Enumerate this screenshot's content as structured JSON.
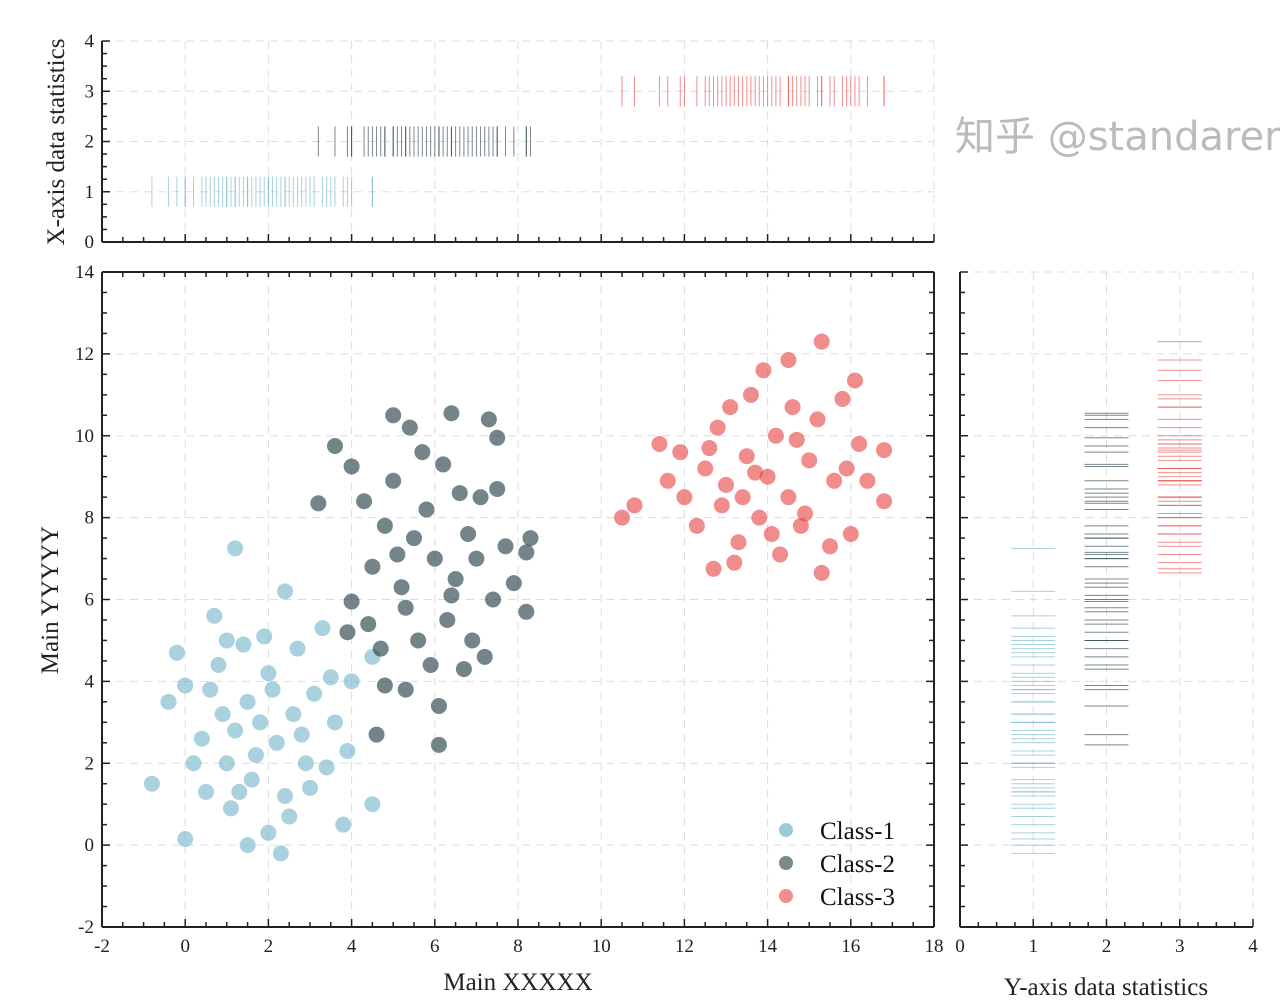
{
  "chart_data": [
    {
      "type": "scatter",
      "xlabel": "Main XXXXX",
      "ylabel": "Main YYYYY",
      "xlim": [
        -2,
        18
      ],
      "ylim": [
        -2,
        14
      ],
      "xticks": [
        -2,
        0,
        2,
        4,
        6,
        8,
        10,
        12,
        14,
        16,
        18
      ],
      "yticks": [
        -2,
        0,
        2,
        4,
        6,
        8,
        10,
        12,
        14
      ],
      "grid": true,
      "legend_position": "bottom-right",
      "series": [
        {
          "name": "Class-1",
          "color": "#6fb3c8",
          "points": [
            [
              -0.8,
              1.5
            ],
            [
              0.0,
              0.15
            ],
            [
              1.2,
              7.25
            ],
            [
              2.3,
              -0.2
            ],
            [
              1.5,
              0.0
            ],
            [
              4.5,
              1.0
            ],
            [
              4.5,
              4.6
            ],
            [
              -0.2,
              4.7
            ],
            [
              -0.4,
              3.5
            ],
            [
              2.4,
              6.2
            ],
            [
              3.3,
              5.3
            ],
            [
              0.0,
              3.9
            ],
            [
              0.5,
              1.3
            ],
            [
              3.8,
              0.5
            ],
            [
              3.5,
              4.1
            ],
            [
              1.0,
              2.0
            ],
            [
              1.8,
              3.0
            ],
            [
              2.2,
              2.5
            ],
            [
              1.5,
              3.5
            ],
            [
              2.0,
              4.2
            ],
            [
              1.2,
              2.8
            ],
            [
              2.6,
              3.2
            ],
            [
              0.8,
              4.4
            ],
            [
              1.6,
              1.6
            ],
            [
              2.9,
              2.0
            ],
            [
              3.1,
              3.7
            ],
            [
              0.4,
              2.6
            ],
            [
              2.4,
              1.2
            ],
            [
              1.9,
              5.1
            ],
            [
              0.7,
              5.6
            ],
            [
              3.9,
              2.3
            ],
            [
              1.1,
              0.9
            ],
            [
              2.7,
              4.8
            ],
            [
              1.4,
              4.9
            ],
            [
              0.2,
              2.0
            ],
            [
              2.1,
              3.8
            ],
            [
              3.6,
              3.0
            ],
            [
              1.7,
              2.2
            ],
            [
              2.5,
              0.7
            ],
            [
              0.9,
              3.2
            ],
            [
              3.0,
              1.4
            ],
            [
              4.0,
              4.0
            ],
            [
              2.8,
              2.7
            ],
            [
              1.3,
              1.3
            ],
            [
              0.6,
              3.8
            ],
            [
              3.4,
              1.9
            ],
            [
              2.0,
              0.3
            ],
            [
              1.0,
              5.0
            ]
          ]
        },
        {
          "name": "Class-2",
          "color": "#1f3a40",
          "points": [
            [
              3.2,
              8.35
            ],
            [
              3.6,
              9.75
            ],
            [
              4.0,
              9.25
            ],
            [
              5.0,
              10.5
            ],
            [
              5.4,
              10.2
            ],
            [
              6.4,
              10.55
            ],
            [
              7.3,
              10.4
            ],
            [
              7.5,
              9.95
            ],
            [
              6.1,
              2.45
            ],
            [
              6.1,
              3.4
            ],
            [
              4.6,
              2.7
            ],
            [
              5.3,
              3.8
            ],
            [
              4.8,
              3.9
            ],
            [
              8.2,
              5.7
            ],
            [
              8.3,
              7.5
            ],
            [
              8.2,
              7.15
            ],
            [
              7.2,
              4.6
            ],
            [
              4.0,
              5.95
            ],
            [
              3.9,
              5.2
            ],
            [
              6.0,
              7.0
            ],
            [
              5.5,
              7.5
            ],
            [
              6.5,
              6.5
            ],
            [
              5.8,
              8.2
            ],
            [
              6.8,
              7.6
            ],
            [
              5.2,
              6.3
            ],
            [
              6.3,
              5.5
            ],
            [
              7.0,
              7.0
            ],
            [
              4.8,
              7.8
            ],
            [
              6.6,
              8.6
            ],
            [
              5.6,
              5.0
            ],
            [
              7.4,
              6.0
            ],
            [
              4.5,
              6.8
            ],
            [
              6.2,
              9.3
            ],
            [
              5.0,
              8.9
            ],
            [
              7.1,
              8.5
            ],
            [
              6.9,
              5.0
            ],
            [
              5.9,
              4.4
            ],
            [
              4.3,
              8.4
            ],
            [
              7.7,
              7.3
            ],
            [
              5.3,
              5.8
            ],
            [
              6.7,
              4.3
            ],
            [
              4.7,
              4.8
            ],
            [
              7.5,
              8.7
            ],
            [
              5.7,
              9.6
            ],
            [
              6.4,
              6.1
            ],
            [
              5.1,
              7.1
            ],
            [
              7.9,
              6.4
            ],
            [
              4.4,
              5.4
            ]
          ]
        },
        {
          "name": "Class-3",
          "color": "#e84545",
          "points": [
            [
              10.5,
              8.0
            ],
            [
              10.8,
              8.3
            ],
            [
              11.4,
              9.8
            ],
            [
              15.3,
              12.3
            ],
            [
              14.5,
              11.85
            ],
            [
              13.9,
              11.6
            ],
            [
              12.7,
              6.75
            ],
            [
              13.2,
              6.9
            ],
            [
              15.3,
              6.65
            ],
            [
              16.8,
              8.4
            ],
            [
              16.8,
              9.65
            ],
            [
              16.1,
              11.35
            ],
            [
              15.8,
              10.9
            ],
            [
              14.0,
              9.0
            ],
            [
              13.5,
              9.5
            ],
            [
              14.5,
              8.5
            ],
            [
              13.0,
              8.8
            ],
            [
              14.2,
              10.0
            ],
            [
              13.8,
              8.0
            ],
            [
              12.5,
              9.2
            ],
            [
              15.0,
              9.4
            ],
            [
              14.8,
              7.8
            ],
            [
              12.8,
              10.2
            ],
            [
              13.3,
              7.4
            ],
            [
              15.6,
              8.9
            ],
            [
              12.0,
              8.5
            ],
            [
              14.3,
              7.1
            ],
            [
              11.9,
              9.6
            ],
            [
              16.2,
              9.8
            ],
            [
              15.2,
              10.4
            ],
            [
              13.1,
              10.7
            ],
            [
              14.7,
              9.9
            ],
            [
              12.3,
              7.8
            ],
            [
              16.0,
              7.6
            ],
            [
              13.7,
              9.1
            ],
            [
              14.9,
              8.1
            ],
            [
              11.6,
              8.9
            ],
            [
              12.9,
              8.3
            ],
            [
              15.5,
              7.3
            ],
            [
              13.6,
              11.0
            ],
            [
              14.1,
              7.6
            ],
            [
              16.4,
              8.9
            ],
            [
              12.6,
              9.7
            ],
            [
              15.9,
              9.2
            ],
            [
              13.4,
              8.5
            ],
            [
              14.6,
              10.7
            ]
          ]
        }
      ]
    },
    {
      "type": "rug",
      "ylabel": "X-axis data statistics",
      "xlim": [
        -2,
        18
      ],
      "ylim": [
        0,
        4
      ],
      "yticks": [
        0,
        1,
        2,
        3,
        4
      ],
      "grid": true,
      "series_levels": [
        1,
        2,
        3
      ]
    },
    {
      "type": "rug",
      "xlabel": "Y-axis data statistics",
      "xlim": [
        0,
        4
      ],
      "ylim": [
        -2,
        14
      ],
      "xticks": [
        0,
        1,
        2,
        3,
        4
      ],
      "grid": true,
      "series_levels": [
        1,
        2,
        3
      ]
    }
  ],
  "watermark": "知乎 @standarer"
}
